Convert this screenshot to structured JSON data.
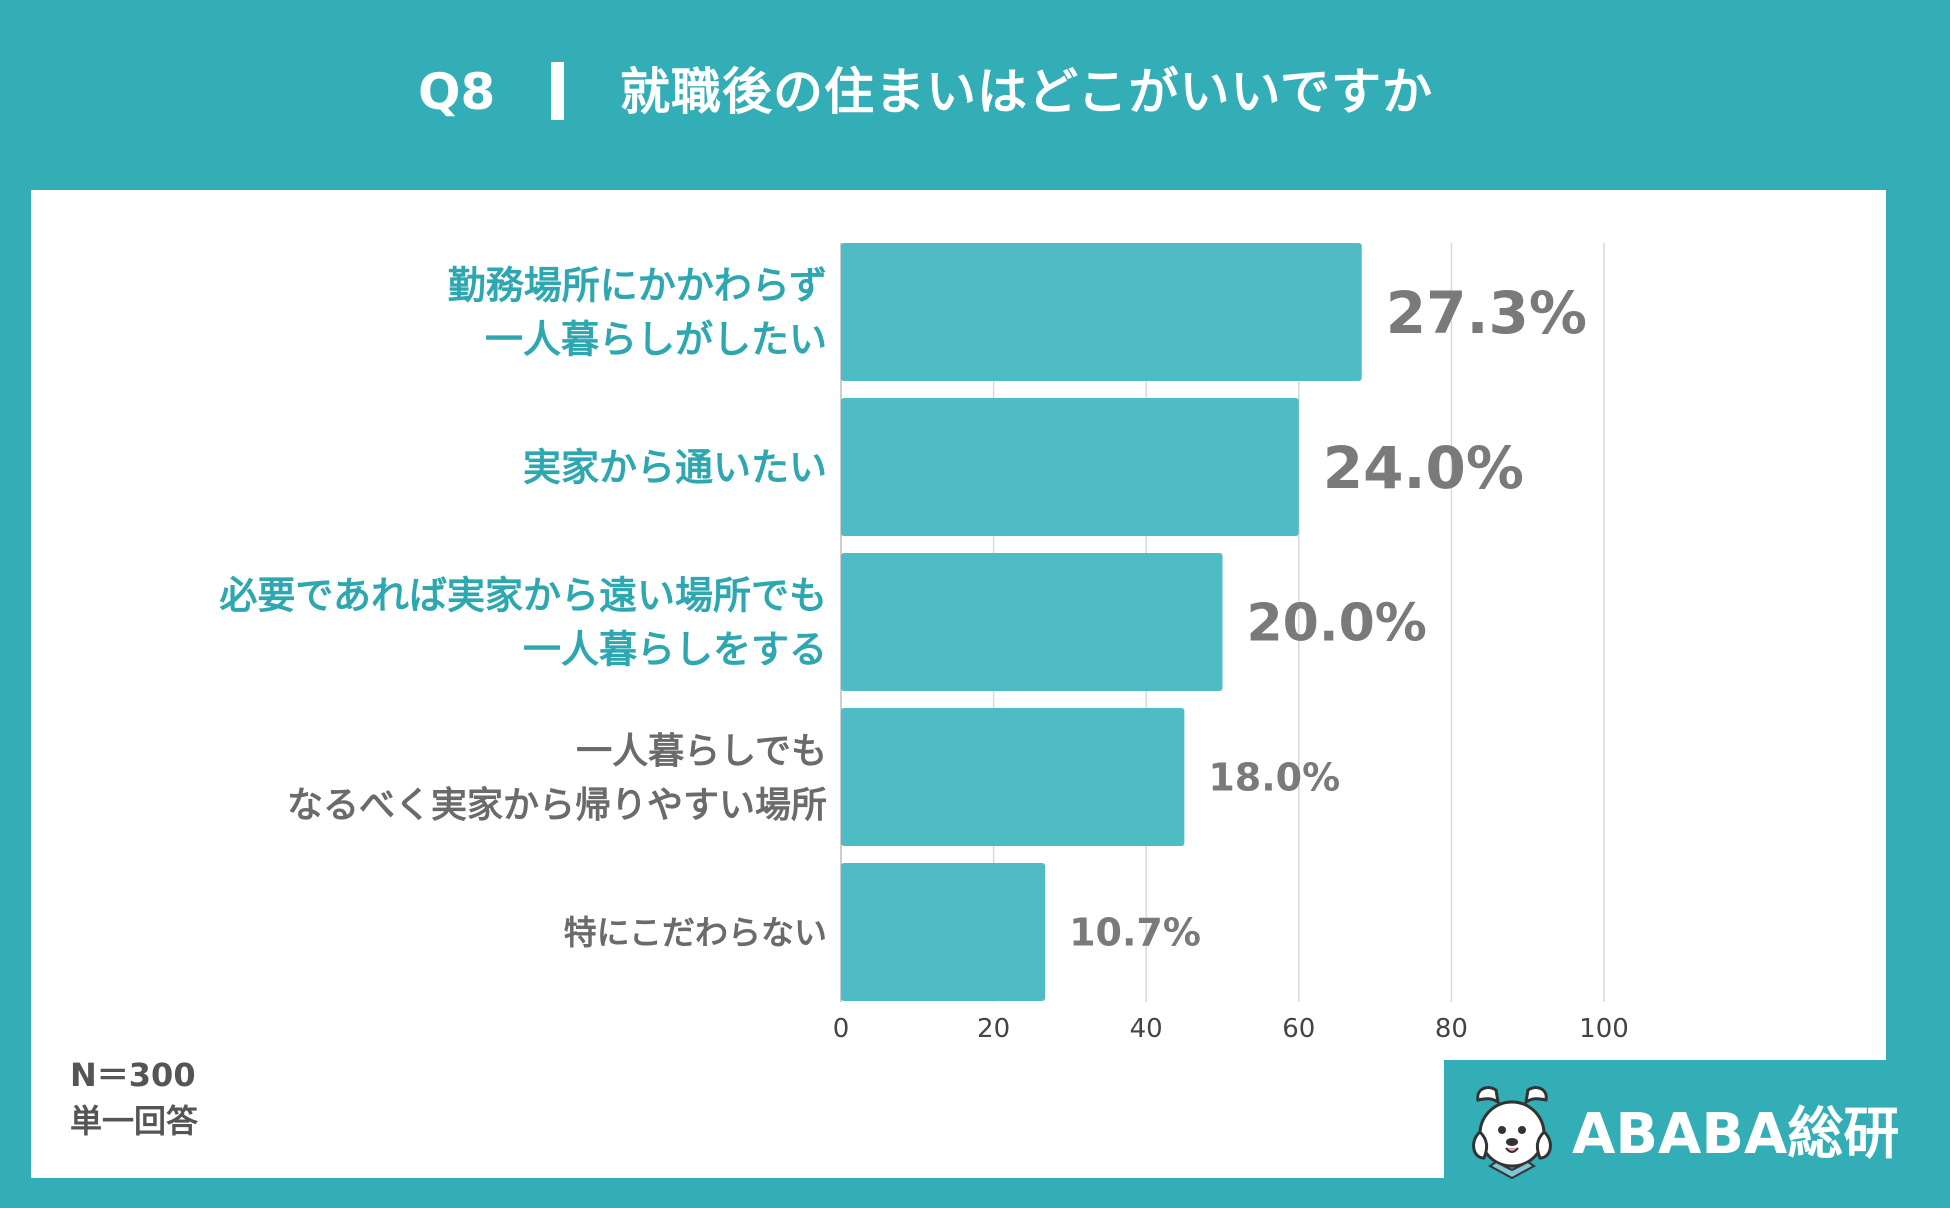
{
  "header": {
    "question_number": "Q8",
    "question_text": "就職後の住まいはどこがいいですか"
  },
  "notes": {
    "sample_size": "N＝300",
    "answer_type": "単一回答"
  },
  "brand": {
    "name": "ABABA総研",
    "logo_icon": "dog-mascot-icon"
  },
  "colors": {
    "background": "#33adb6",
    "bar": "#4fbbc5",
    "highlight_label": "#2ea7b0",
    "normal_label": "#6b6b6b",
    "value_text": "#7a7a7a",
    "grid": "#d9d9d9"
  },
  "chart_data": {
    "type": "bar",
    "orientation": "horizontal",
    "categories": [
      [
        "勤務場所にかかわらず",
        "一人暮らしがしたい"
      ],
      [
        "実家から通いたい"
      ],
      [
        "必要であれば実家から遠い場所でも",
        "一人暮らしをする"
      ],
      [
        "一人暮らしでも",
        "なるべく実家から帰りやすい場所"
      ],
      [
        "特にこだわらない"
      ]
    ],
    "values": [
      27.3,
      24.0,
      20.0,
      18.0,
      10.7
    ],
    "value_labels": [
      "27.3%",
      "24.0%",
      "20.0%",
      "18.0%",
      "10.7%"
    ],
    "highlighted": [
      true,
      true,
      true,
      false,
      false
    ],
    "xlim": [
      0,
      100
    ],
    "xticks": [
      0,
      20,
      40,
      60,
      80,
      100
    ],
    "grid": true
  }
}
